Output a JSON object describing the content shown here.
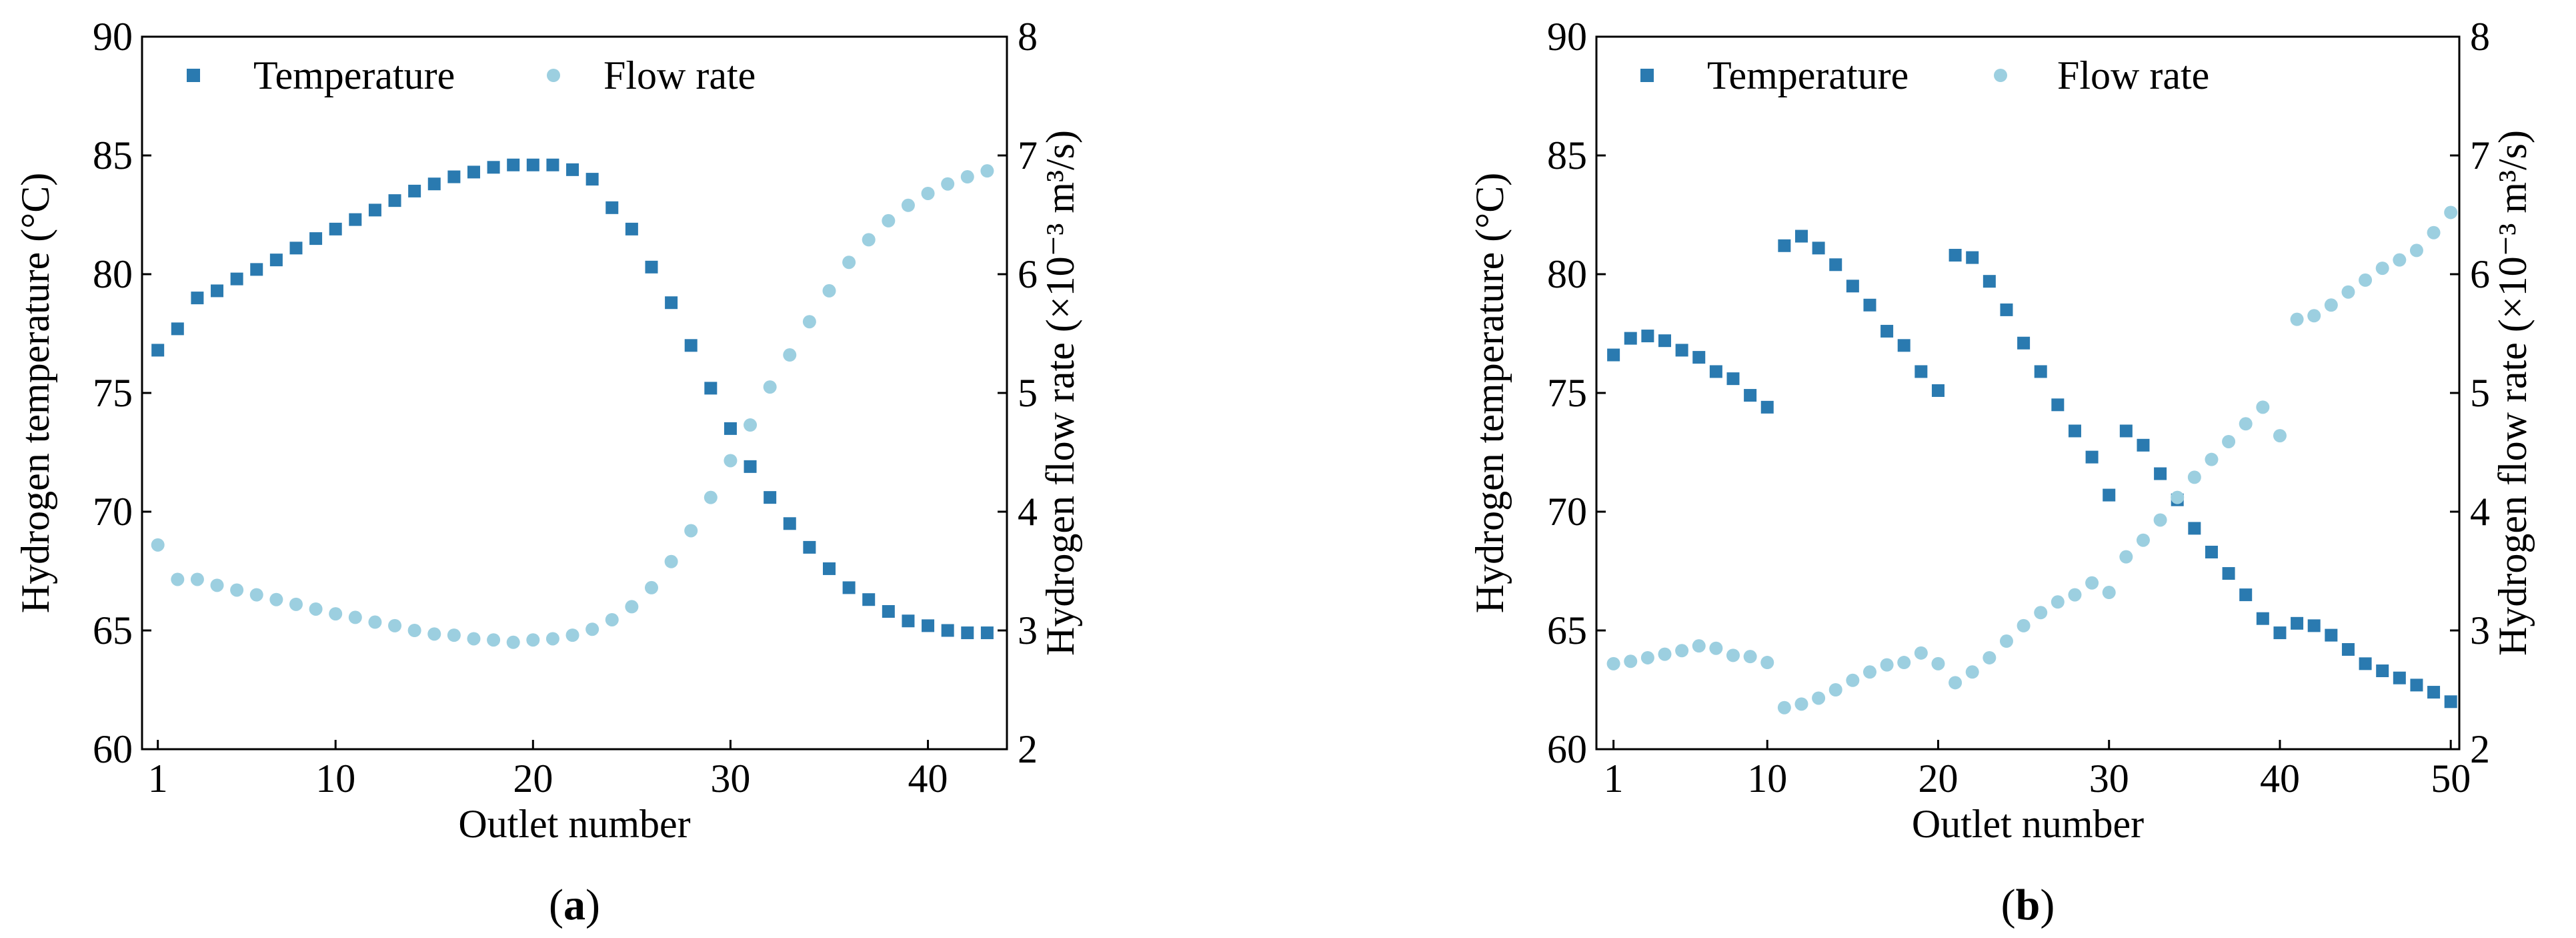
{
  "colors": {
    "temperature": "#2a7ab0",
    "flow_rate": "#9ccfe0",
    "axis": "#000000"
  },
  "chart_data": [
    {
      "type": "scatter",
      "caption": {
        "open": "(",
        "letter": "a",
        "close": ")"
      },
      "xlabel": "Outlet number",
      "ylabel_left": "Hydrogen temperature (°C)",
      "ylabel_right": "Hydrogen flow rate (×10⁻³ m³/s)",
      "xlim": [
        0.2,
        44
      ],
      "ylim_left": [
        60,
        90
      ],
      "ylim_right": [
        2,
        8
      ],
      "xticks": [
        1,
        10,
        20,
        30,
        40
      ],
      "yticks_left": [
        60,
        65,
        70,
        75,
        80,
        85,
        90
      ],
      "yticks_right": [
        2,
        3,
        4,
        5,
        6,
        7,
        8
      ],
      "legend": {
        "position": "top",
        "entries": [
          "Temperature",
          "Flow rate"
        ]
      },
      "series": [
        {
          "name": "Temperature",
          "axis": "left",
          "marker": "square",
          "x": [
            1,
            2,
            3,
            4,
            5,
            6,
            7,
            8,
            9,
            10,
            11,
            12,
            13,
            14,
            15,
            16,
            17,
            18,
            19,
            20,
            21,
            22,
            23,
            24,
            25,
            26,
            27,
            28,
            29,
            30,
            31,
            32,
            33,
            34,
            35,
            36,
            37,
            38,
            39,
            40,
            41,
            42,
            43
          ],
          "y": [
            76.8,
            77.7,
            79.0,
            79.3,
            79.8,
            80.2,
            80.6,
            81.1,
            81.5,
            81.9,
            82.3,
            82.7,
            83.1,
            83.5,
            83.8,
            84.1,
            84.3,
            84.5,
            84.6,
            84.6,
            84.6,
            84.4,
            84.0,
            82.8,
            81.9,
            80.3,
            78.8,
            77.0,
            75.2,
            73.5,
            71.9,
            70.6,
            69.5,
            68.5,
            67.6,
            66.8,
            66.3,
            65.8,
            65.4,
            65.2,
            65.0,
            64.9,
            64.9
          ]
        },
        {
          "name": "Flow rate",
          "axis": "right",
          "marker": "circle",
          "x": [
            1,
            2,
            3,
            4,
            5,
            6,
            7,
            8,
            9,
            10,
            11,
            12,
            13,
            14,
            15,
            16,
            17,
            18,
            19,
            20,
            21,
            22,
            23,
            24,
            25,
            26,
            27,
            28,
            29,
            30,
            31,
            32,
            33,
            34,
            35,
            36,
            37,
            38,
            39,
            40,
            41,
            42,
            43
          ],
          "y": [
            3.72,
            3.43,
            3.43,
            3.38,
            3.34,
            3.3,
            3.26,
            3.22,
            3.18,
            3.14,
            3.11,
            3.07,
            3.04,
            3.0,
            2.97,
            2.96,
            2.93,
            2.92,
            2.9,
            2.92,
            2.93,
            2.96,
            3.01,
            3.09,
            3.2,
            3.36,
            3.58,
            3.84,
            4.12,
            4.43,
            4.73,
            5.05,
            5.32,
            5.6,
            5.86,
            6.1,
            6.29,
            6.45,
            6.58,
            6.68,
            6.76,
            6.82,
            6.87
          ]
        }
      ]
    },
    {
      "type": "scatter",
      "caption": {
        "open": "(",
        "letter": "b",
        "close": ")"
      },
      "xlabel": "Outlet number",
      "ylabel_left": "Hydrogen temperature (°C)",
      "ylabel_right": "Hydrogen flow rate (×10⁻³ m³/s)",
      "xlim": [
        0,
        50.5
      ],
      "ylim_left": [
        60,
        90
      ],
      "ylim_right": [
        2,
        8
      ],
      "xticks": [
        1,
        10,
        20,
        30,
        40,
        50
      ],
      "yticks_left": [
        60,
        65,
        70,
        75,
        80,
        85,
        90
      ],
      "yticks_right": [
        2,
        3,
        4,
        5,
        6,
        7,
        8
      ],
      "legend": {
        "position": "top",
        "entries": [
          "Temperature",
          "Flow rate"
        ]
      },
      "series": [
        {
          "name": "Temperature",
          "axis": "left",
          "marker": "square",
          "x": [
            1,
            2,
            3,
            4,
            5,
            6,
            7,
            8,
            9,
            10,
            11,
            12,
            13,
            14,
            15,
            16,
            17,
            18,
            19,
            20,
            21,
            22,
            23,
            24,
            25,
            26,
            27,
            28,
            29,
            30,
            31,
            32,
            33,
            34,
            35,
            36,
            37,
            38,
            39,
            40,
            41,
            42,
            43,
            44,
            45,
            46,
            47,
            48,
            49,
            50
          ],
          "y": [
            76.6,
            77.3,
            77.4,
            77.2,
            76.8,
            76.5,
            75.9,
            75.6,
            74.9,
            74.4,
            81.2,
            81.6,
            81.1,
            80.4,
            79.5,
            78.7,
            77.6,
            77.0,
            75.9,
            75.1,
            80.8,
            80.7,
            79.7,
            78.5,
            77.1,
            75.9,
            74.5,
            73.4,
            72.3,
            70.7,
            73.4,
            72.8,
            71.6,
            70.5,
            69.3,
            68.3,
            67.4,
            66.5,
            65.5,
            64.9,
            65.3,
            65.2,
            64.8,
            64.2,
            63.6,
            63.3,
            63.0,
            62.7,
            62.4,
            62.0
          ]
        },
        {
          "name": "Flow rate",
          "axis": "right",
          "marker": "circle",
          "x": [
            1,
            2,
            3,
            4,
            5,
            6,
            7,
            8,
            9,
            10,
            11,
            12,
            13,
            14,
            15,
            16,
            17,
            18,
            19,
            20,
            21,
            22,
            23,
            24,
            25,
            26,
            27,
            28,
            29,
            30,
            31,
            32,
            33,
            34,
            35,
            36,
            37,
            38,
            39,
            40,
            41,
            42,
            43,
            44,
            45,
            46,
            47,
            48,
            49,
            50
          ],
          "y": [
            2.72,
            2.74,
            2.77,
            2.8,
            2.83,
            2.87,
            2.85,
            2.79,
            2.78,
            2.73,
            2.35,
            2.38,
            2.43,
            2.5,
            2.58,
            2.65,
            2.71,
            2.73,
            2.81,
            2.72,
            2.56,
            2.65,
            2.77,
            2.91,
            3.04,
            3.15,
            3.24,
            3.3,
            3.4,
            3.32,
            3.62,
            3.76,
            3.93,
            4.12,
            4.29,
            4.44,
            4.59,
            4.74,
            4.88,
            4.64,
            5.62,
            5.65,
            5.74,
            5.85,
            5.95,
            6.05,
            6.12,
            6.2,
            6.35,
            6.52
          ]
        }
      ]
    }
  ]
}
